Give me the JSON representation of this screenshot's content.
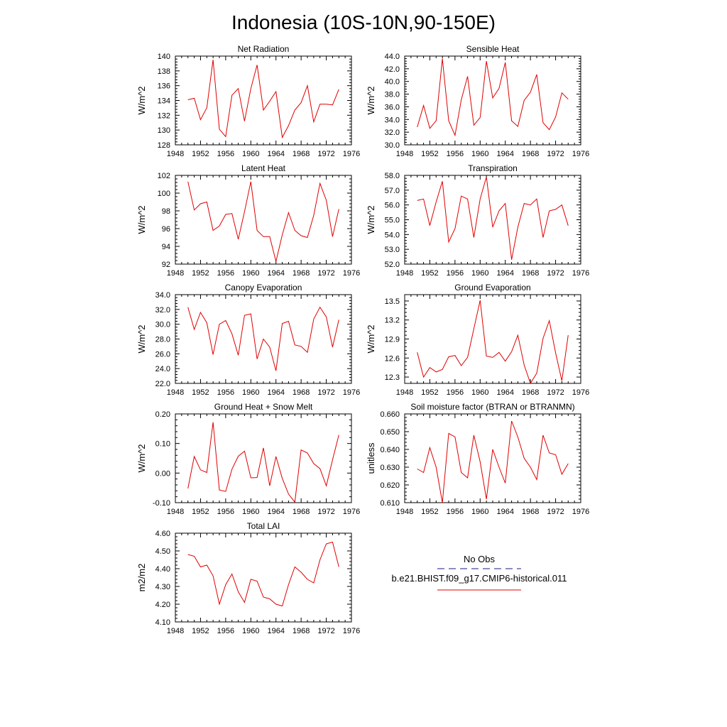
{
  "page_title": "Indonesia (10S-10N,90-150E)",
  "legend": {
    "obs_label": "No Obs",
    "model_label": "b.e21.BHIST.f09_g17.CMIP6-historical.011",
    "obs_color": "#1a1a80",
    "model_color": "#e00000"
  },
  "chart_data": [
    {
      "type": "line",
      "title": "Net Radiation",
      "ylabel": "W/m^2",
      "xlim": [
        1948,
        1976
      ],
      "ylim": [
        128,
        140
      ],
      "x_ticks": [
        1948,
        1952,
        1956,
        1960,
        1964,
        1968,
        1972,
        1976
      ],
      "x_tick_labels": [
        "1948",
        "1952",
        "1956",
        "1960",
        "1964",
        "1968",
        "1972",
        "1976"
      ],
      "y_ticks": [
        128,
        130,
        132,
        134,
        136,
        138,
        140
      ],
      "y_tick_labels": [
        "128",
        "130",
        "132",
        "134",
        "136",
        "138",
        "140"
      ],
      "x": [
        1950,
        1951,
        1952,
        1953,
        1954,
        1955,
        1956,
        1957,
        1958,
        1959,
        1960,
        1961,
        1962,
        1963,
        1964,
        1965,
        1966,
        1967,
        1968,
        1969,
        1970,
        1971,
        1972,
        1973,
        1974
      ],
      "y": [
        134.1,
        134.3,
        131.4,
        133.0,
        139.5,
        130.1,
        129.1,
        134.7,
        135.6,
        131.2,
        135.6,
        138.8,
        132.7,
        133.9,
        135.2,
        129.0,
        130.6,
        132.7,
        133.7,
        136.0,
        131.1,
        133.5,
        133.5,
        133.4,
        135.5
      ]
    },
    {
      "type": "line",
      "title": "Sensible Heat",
      "ylabel": "W/m^2",
      "xlim": [
        1948,
        1976
      ],
      "ylim": [
        30.0,
        44.0
      ],
      "x_ticks": [
        1948,
        1952,
        1956,
        1960,
        1964,
        1968,
        1972,
        1976
      ],
      "x_tick_labels": [
        "1948",
        "1952",
        "1956",
        "1960",
        "1964",
        "1968",
        "1972",
        "1976"
      ],
      "y_ticks": [
        30,
        32,
        34,
        36,
        38,
        40,
        42,
        44
      ],
      "y_tick_labels": [
        "30.0",
        "32.0",
        "34.0",
        "36.0",
        "38.0",
        "40.0",
        "42.0",
        "44.0"
      ],
      "x": [
        1950,
        1951,
        1952,
        1953,
        1954,
        1955,
        1956,
        1957,
        1958,
        1959,
        1960,
        1961,
        1962,
        1963,
        1964,
        1965,
        1966,
        1967,
        1968,
        1969,
        1970,
        1971,
        1972,
        1973,
        1974
      ],
      "y": [
        32.8,
        36.2,
        32.6,
        33.8,
        43.6,
        33.8,
        31.5,
        37.1,
        40.8,
        33.1,
        34.3,
        43.2,
        37.4,
        38.9,
        43.0,
        33.8,
        32.9,
        37.0,
        38.3,
        41.1,
        33.5,
        32.4,
        34.4,
        38.2,
        37.2
      ]
    },
    {
      "type": "line",
      "title": "Latent Heat",
      "ylabel": "W/m^2",
      "xlim": [
        1948,
        1976
      ],
      "ylim": [
        92,
        102
      ],
      "x_ticks": [
        1948,
        1952,
        1956,
        1960,
        1964,
        1968,
        1972,
        1976
      ],
      "x_tick_labels": [
        "1948",
        "1952",
        "1956",
        "1960",
        "1964",
        "1968",
        "1972",
        "1976"
      ],
      "y_ticks": [
        92,
        94,
        96,
        98,
        100,
        102
      ],
      "y_tick_labels": [
        "92",
        "94",
        "96",
        "98",
        "100",
        "102"
      ],
      "x": [
        1950,
        1951,
        1952,
        1953,
        1954,
        1955,
        1956,
        1957,
        1958,
        1959,
        1960,
        1961,
        1962,
        1963,
        1964,
        1965,
        1966,
        1967,
        1968,
        1969,
        1970,
        1971,
        1972,
        1973,
        1974
      ],
      "y": [
        101.3,
        98.1,
        98.8,
        99.0,
        95.8,
        96.3,
        97.6,
        97.7,
        94.8,
        97.9,
        101.3,
        95.8,
        95.1,
        95.1,
        92.3,
        95.3,
        97.8,
        95.8,
        95.2,
        95.0,
        97.5,
        101.1,
        99.2,
        95.1,
        98.2
      ]
    },
    {
      "type": "line",
      "title": "Transpiration",
      "ylabel": "W/m^2",
      "xlim": [
        1948,
        1976
      ],
      "ylim": [
        52.0,
        58.0
      ],
      "x_ticks": [
        1948,
        1952,
        1956,
        1960,
        1964,
        1968,
        1972,
        1976
      ],
      "x_tick_labels": [
        "1948",
        "1952",
        "1956",
        "1960",
        "1964",
        "1968",
        "1972",
        "1976"
      ],
      "y_ticks": [
        52,
        53,
        54,
        55,
        56,
        57,
        58
      ],
      "y_tick_labels": [
        "52.0",
        "53.0",
        "54.0",
        "55.0",
        "56.0",
        "57.0",
        "58.0"
      ],
      "x": [
        1950,
        1951,
        1952,
        1953,
        1954,
        1955,
        1956,
        1957,
        1958,
        1959,
        1960,
        1961,
        1962,
        1963,
        1964,
        1965,
        1966,
        1967,
        1968,
        1969,
        1970,
        1971,
        1972,
        1973,
        1974
      ],
      "y": [
        56.3,
        56.4,
        54.6,
        56.2,
        57.6,
        53.5,
        54.4,
        56.6,
        56.4,
        53.8,
        56.4,
        57.9,
        54.5,
        55.6,
        56.1,
        52.3,
        54.5,
        56.1,
        56.0,
        56.4,
        53.8,
        55.6,
        55.7,
        56.0,
        54.6
      ]
    },
    {
      "type": "line",
      "title": "Canopy Evaporation",
      "ylabel": "W/m^2",
      "xlim": [
        1948,
        1976
      ],
      "ylim": [
        22.0,
        34.0
      ],
      "x_ticks": [
        1948,
        1952,
        1956,
        1960,
        1964,
        1968,
        1972,
        1976
      ],
      "x_tick_labels": [
        "1948",
        "1952",
        "1956",
        "1960",
        "1964",
        "1968",
        "1972",
        "1976"
      ],
      "y_ticks": [
        22,
        24,
        26,
        28,
        30,
        32,
        34
      ],
      "y_tick_labels": [
        "22.0",
        "24.0",
        "26.0",
        "28.0",
        "30.0",
        "32.0",
        "34.0"
      ],
      "x": [
        1950,
        1951,
        1952,
        1953,
        1954,
        1955,
        1956,
        1957,
        1958,
        1959,
        1960,
        1961,
        1962,
        1963,
        1964,
        1965,
        1966,
        1967,
        1968,
        1969,
        1970,
        1971,
        1972,
        1973,
        1974
      ],
      "y": [
        32.3,
        29.3,
        31.6,
        30.2,
        25.9,
        30.0,
        30.5,
        28.7,
        25.8,
        31.2,
        31.4,
        25.3,
        28.0,
        26.9,
        23.7,
        30.1,
        30.4,
        27.2,
        27.0,
        26.2,
        30.7,
        32.3,
        31.0,
        26.9,
        30.6
      ]
    },
    {
      "type": "line",
      "title": "Ground Evaporation",
      "ylabel": "W/m^2",
      "xlim": [
        1948,
        1976
      ],
      "ylim": [
        12.2,
        13.6
      ],
      "x_ticks": [
        1948,
        1952,
        1956,
        1960,
        1964,
        1968,
        1972,
        1976
      ],
      "x_tick_labels": [
        "1948",
        "1952",
        "1956",
        "1960",
        "1964",
        "1968",
        "1972",
        "1976"
      ],
      "y_ticks": [
        12.3,
        12.6,
        12.9,
        13.2,
        13.5
      ],
      "y_tick_labels": [
        "12.3",
        "12.6",
        "12.9",
        "13.2",
        "13.5"
      ],
      "x": [
        1950,
        1951,
        1952,
        1953,
        1954,
        1955,
        1956,
        1957,
        1958,
        1959,
        1960,
        1961,
        1962,
        1963,
        1964,
        1965,
        1966,
        1967,
        1968,
        1969,
        1970,
        1971,
        1972,
        1973,
        1974
      ],
      "y": [
        12.69,
        12.3,
        12.45,
        12.38,
        12.42,
        12.62,
        12.64,
        12.48,
        12.61,
        13.06,
        13.51,
        12.63,
        12.61,
        12.69,
        12.55,
        12.7,
        12.96,
        12.49,
        12.2,
        12.36,
        12.91,
        13.19,
        12.68,
        12.24,
        12.96
      ]
    },
    {
      "type": "line",
      "title": "Ground Heat + Snow Melt",
      "ylabel": "W/m^2",
      "xlim": [
        1948,
        1976
      ],
      "ylim": [
        -0.1,
        0.2
      ],
      "x_ticks": [
        1948,
        1952,
        1956,
        1960,
        1964,
        1968,
        1972,
        1976
      ],
      "x_tick_labels": [
        "1948",
        "1952",
        "1956",
        "1960",
        "1964",
        "1968",
        "1972",
        "1976"
      ],
      "y_ticks": [
        -0.1,
        0.0,
        0.1,
        0.2
      ],
      "y_tick_labels": [
        "-0.10",
        "0.00",
        "0.10",
        "0.20"
      ],
      "x": [
        1950,
        1951,
        1952,
        1953,
        1954,
        1955,
        1956,
        1957,
        1958,
        1959,
        1960,
        1961,
        1962,
        1963,
        1964,
        1965,
        1966,
        1967,
        1968,
        1969,
        1970,
        1971,
        1972,
        1973,
        1974
      ],
      "y": [
        -0.052,
        0.056,
        0.011,
        0.002,
        0.172,
        -0.057,
        -0.062,
        0.013,
        0.057,
        0.074,
        -0.016,
        -0.015,
        0.085,
        -0.043,
        0.056,
        -0.018,
        -0.071,
        -0.098,
        0.078,
        0.068,
        0.032,
        0.015,
        -0.043,
        0.045,
        0.129
      ]
    },
    {
      "type": "line",
      "title": "Soil moisture factor (BTRAN or BTRANMN)",
      "ylabel": "unitless",
      "xlim": [
        1948,
        1976
      ],
      "ylim": [
        0.61,
        0.66
      ],
      "x_ticks": [
        1948,
        1952,
        1956,
        1960,
        1964,
        1968,
        1972,
        1976
      ],
      "x_tick_labels": [
        "1948",
        "1952",
        "1956",
        "1960",
        "1964",
        "1968",
        "1972",
        "1976"
      ],
      "y_ticks": [
        0.61,
        0.62,
        0.63,
        0.64,
        0.65,
        0.66
      ],
      "y_tick_labels": [
        "0.610",
        "0.620",
        "0.630",
        "0.640",
        "0.650",
        "0.660"
      ],
      "x": [
        1950,
        1951,
        1952,
        1953,
        1954,
        1955,
        1956,
        1957,
        1958,
        1959,
        1960,
        1961,
        1962,
        1963,
        1964,
        1965,
        1966,
        1967,
        1968,
        1969,
        1970,
        1971,
        1972,
        1973,
        1974
      ],
      "y": [
        0.629,
        0.627,
        0.641,
        0.63,
        0.61,
        0.649,
        0.647,
        0.627,
        0.624,
        0.648,
        0.633,
        0.612,
        0.64,
        0.63,
        0.621,
        0.656,
        0.647,
        0.635,
        0.63,
        0.623,
        0.648,
        0.638,
        0.637,
        0.626,
        0.632
      ]
    },
    {
      "type": "line",
      "title": "Total LAI",
      "ylabel": "m2/m2",
      "xlim": [
        1948,
        1976
      ],
      "ylim": [
        4.1,
        4.6
      ],
      "x_ticks": [
        1948,
        1952,
        1956,
        1960,
        1964,
        1968,
        1972,
        1976
      ],
      "x_tick_labels": [
        "1948",
        "1952",
        "1956",
        "1960",
        "1964",
        "1968",
        "1972",
        "1976"
      ],
      "y_ticks": [
        4.1,
        4.2,
        4.3,
        4.4,
        4.5,
        4.6
      ],
      "y_tick_labels": [
        "4.10",
        "4.20",
        "4.30",
        "4.40",
        "4.50",
        "4.60"
      ],
      "x": [
        1950,
        1951,
        1952,
        1953,
        1954,
        1955,
        1956,
        1957,
        1958,
        1959,
        1960,
        1961,
        1962,
        1963,
        1964,
        1965,
        1966,
        1967,
        1968,
        1969,
        1970,
        1971,
        1972,
        1973,
        1974
      ],
      "y": [
        4.48,
        4.47,
        4.41,
        4.42,
        4.36,
        4.2,
        4.31,
        4.37,
        4.27,
        4.21,
        4.34,
        4.33,
        4.24,
        4.23,
        4.2,
        4.19,
        4.31,
        4.41,
        4.38,
        4.34,
        4.32,
        4.45,
        4.54,
        4.55,
        4.41
      ]
    }
  ]
}
